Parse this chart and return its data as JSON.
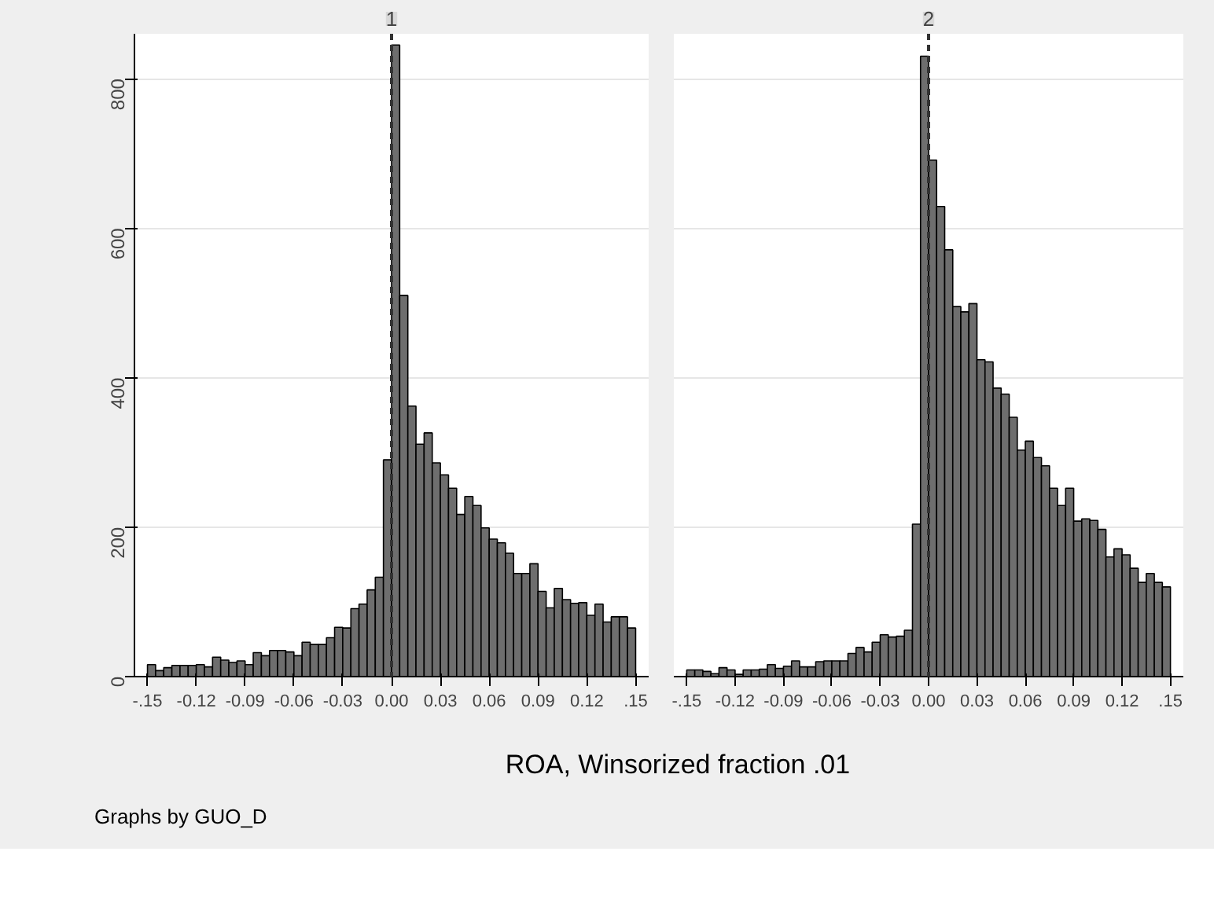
{
  "chart_data": [
    {
      "type": "histogram",
      "title": "1",
      "xlabel": "ROA, Winsorized fraction .01",
      "annotations": [
        "Graphs by GUO_D"
      ],
      "color": "#6e6e6e",
      "bins": [
        -0.15,
        -0.145,
        -0.14,
        -0.135,
        -0.13,
        -0.125,
        -0.12,
        -0.115,
        -0.11,
        -0.105,
        -0.1,
        -0.095,
        -0.09,
        -0.085,
        -0.08,
        -0.075,
        -0.07,
        -0.065,
        -0.06,
        -0.055,
        -0.05,
        -0.045,
        -0.04,
        -0.035,
        -0.03,
        -0.025,
        -0.02,
        -0.015,
        -0.01,
        -0.005,
        0,
        0.005,
        0.01,
        0.015,
        0.02,
        0.025,
        0.03,
        0.035,
        0.04,
        0.045,
        0.05,
        0.055,
        0.06,
        0.065,
        0.07,
        0.075,
        0.08,
        0.085,
        0.09,
        0.095,
        0.1,
        0.105,
        0.11,
        0.115,
        0.12,
        0.125,
        0.13,
        0.135,
        0.14,
        0.145,
        0.15
      ],
      "values": [
        16,
        8,
        12,
        15,
        15,
        15,
        16,
        13,
        26,
        22,
        19,
        21,
        16,
        32,
        28,
        35,
        35,
        33,
        28,
        46,
        43,
        43,
        52,
        66,
        65,
        91,
        97,
        116,
        133,
        290,
        845,
        510,
        362,
        311,
        326,
        286,
        270,
        252,
        217,
        241,
        229,
        199,
        184,
        179,
        165,
        138,
        138,
        151,
        114,
        92,
        118,
        103,
        98,
        99,
        82,
        97,
        73,
        80,
        80,
        65
      ],
      "xlim": [
        -0.158,
        0.158
      ],
      "xticks": [
        {
          "value": -0.15,
          "label": "-.15"
        },
        {
          "value": -0.12,
          "label": "-0.12"
        },
        {
          "value": -0.09,
          "label": "-0.09"
        },
        {
          "value": -0.06,
          "label": "-0.06"
        },
        {
          "value": -0.03,
          "label": "-0.03"
        },
        {
          "value": 0,
          "label": "0.00"
        },
        {
          "value": 0.03,
          "label": "0.03"
        },
        {
          "value": 0.06,
          "label": "0.06"
        },
        {
          "value": 0.09,
          "label": "0.09"
        },
        {
          "value": 0.12,
          "label": "0.12"
        },
        {
          "value": 0.15,
          "label": ".15"
        }
      ],
      "ylim": [
        0,
        860
      ],
      "yticks": [
        0,
        200,
        400,
        600,
        800
      ],
      "grid": "y",
      "ref_lines": [
        {
          "axis": "x",
          "value": 0,
          "line_style": "dashed",
          "color": "#333333"
        }
      ]
    },
    {
      "type": "histogram",
      "title": "2",
      "color": "#6e6e6e",
      "tick_labels": "x",
      "bins": [
        -0.15,
        -0.145,
        -0.14,
        -0.135,
        -0.13,
        -0.125,
        -0.12,
        -0.115,
        -0.11,
        -0.105,
        -0.1,
        -0.095,
        -0.09,
        -0.085,
        -0.08,
        -0.075,
        -0.07,
        -0.065,
        -0.06,
        -0.055,
        -0.05,
        -0.045,
        -0.04,
        -0.035,
        -0.03,
        -0.025,
        -0.02,
        -0.015,
        -0.01,
        -0.005,
        0,
        0.005,
        0.01,
        0.015,
        0.02,
        0.025,
        0.03,
        0.035,
        0.04,
        0.045,
        0.05,
        0.055,
        0.06,
        0.065,
        0.07,
        0.075,
        0.08,
        0.085,
        0.09,
        0.095,
        0.1,
        0.105,
        0.11,
        0.115,
        0.12,
        0.125,
        0.13,
        0.135,
        0.14,
        0.145,
        0.15
      ],
      "values": [
        9,
        9,
        7,
        4,
        12,
        9,
        3,
        9,
        9,
        10,
        16,
        11,
        14,
        21,
        13,
        13,
        20,
        21,
        21,
        21,
        31,
        39,
        33,
        46,
        56,
        53,
        54,
        62,
        204,
        830,
        691,
        629,
        571,
        495,
        488,
        499,
        424,
        421,
        386,
        378,
        347,
        303,
        315,
        293,
        282,
        252,
        229,
        252,
        208,
        211,
        209,
        197,
        160,
        171,
        163,
        145,
        126,
        138,
        126,
        120
      ],
      "xlim": [
        -0.158,
        0.158
      ],
      "xticks": [
        {
          "value": -0.15,
          "label": "-.15"
        },
        {
          "value": -0.12,
          "label": "-0.12"
        },
        {
          "value": -0.09,
          "label": "-0.09"
        },
        {
          "value": -0.06,
          "label": "-0.06"
        },
        {
          "value": -0.03,
          "label": "-0.03"
        },
        {
          "value": 0,
          "label": "0.00"
        },
        {
          "value": 0.03,
          "label": "0.03"
        },
        {
          "value": 0.06,
          "label": "0.06"
        },
        {
          "value": 0.09,
          "label": "0.09"
        },
        {
          "value": 0.12,
          "label": "0.12"
        },
        {
          "value": 0.15,
          "label": ".15"
        }
      ],
      "ylim": [
        0,
        860
      ],
      "yticks": [
        0,
        200,
        400,
        600,
        800
      ],
      "grid": "y",
      "ref_lines": [
        {
          "axis": "x",
          "value": 0,
          "line_style": "dashed",
          "color": "#333333"
        }
      ]
    }
  ]
}
